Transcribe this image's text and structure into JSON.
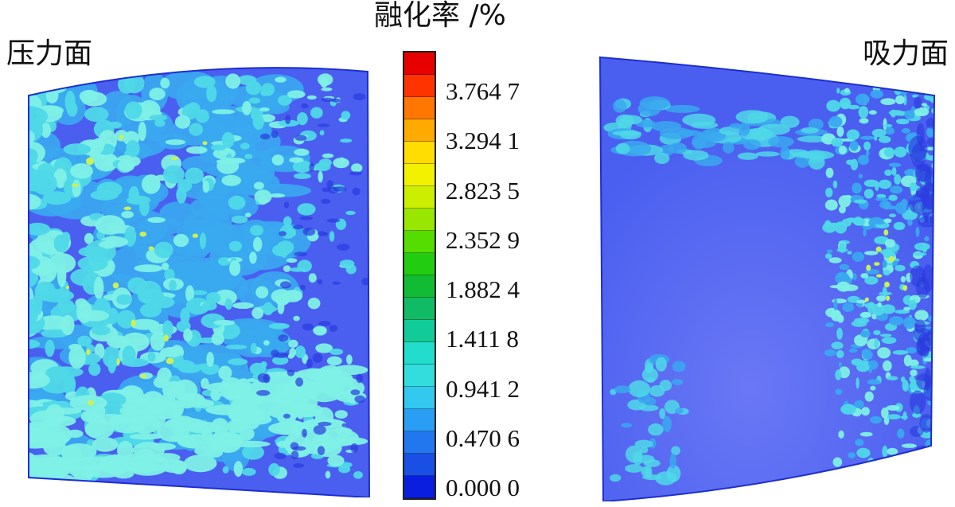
{
  "surfaces": {
    "pressure_side_label": "压力面",
    "suction_side_label": "吸力面"
  },
  "colorbar": {
    "title": "融化率 /%",
    "tick_labels": [
      "3.764 7",
      "3.294 1",
      "2.823 5",
      "2.352 9",
      "1.882 4",
      "1.411 8",
      "0.941 2",
      "0.470 6",
      "0.000 0"
    ],
    "tick_values": [
      3.7647,
      3.2941,
      2.8235,
      2.3529,
      1.8824,
      1.4118,
      0.9412,
      0.4706,
      0.0
    ],
    "max_value": 4.2353,
    "min_value": 0.0,
    "segment_colors": [
      "#e60000",
      "#ff3300",
      "#ff7700",
      "#ffaa00",
      "#ffdd00",
      "#f2f200",
      "#ccee00",
      "#99e600",
      "#55dd00",
      "#22cc11",
      "#11bb33",
      "#11bb66",
      "#11cc99",
      "#22ddcc",
      "#33dddd",
      "#33c8f0",
      "#2a9ef5",
      "#2277ee",
      "#1a4fe6",
      "#0a1ee0"
    ]
  },
  "colors": {
    "base_blue": "#4a5ff0",
    "deep_blue": "#2a3ae0",
    "mid_blue": "#3aa8f0",
    "cyan": "#4fd8e8",
    "light_cyan": "#7ff0e6",
    "yellow_green": "#c8f05a"
  }
}
